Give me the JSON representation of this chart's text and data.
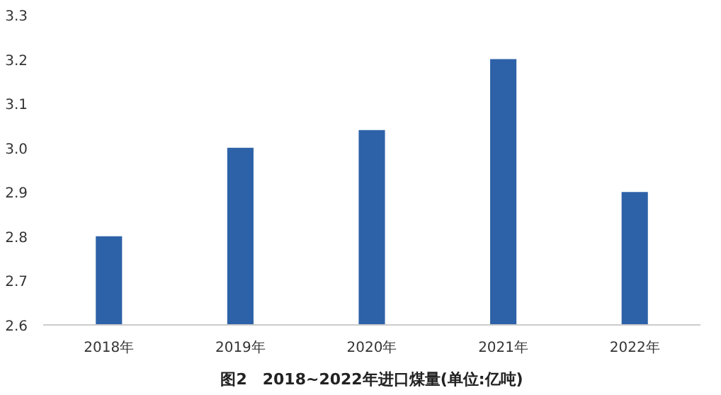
{
  "chart_data": {
    "type": "bar",
    "title": "图2　2018~2022年进口煤量(单位:亿吨)",
    "categories": [
      "2018年",
      "2019年",
      "2020年",
      "2021年",
      "2022年"
    ],
    "values": [
      2.8,
      3.0,
      3.04,
      3.2,
      2.9
    ],
    "color": "#2e62a8",
    "ylim": [
      2.6,
      3.3
    ],
    "yticks": [
      2.6,
      2.7,
      2.8,
      2.9,
      {
        "value": 3.0,
        "label": "3.0"
      },
      3.1,
      3.2,
      3.3
    ],
    "grid": false
  }
}
